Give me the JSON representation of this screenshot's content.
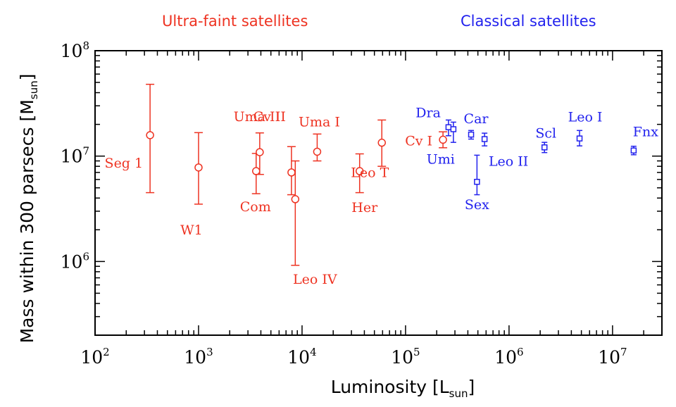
{
  "chart_data": {
    "type": "scatter",
    "xlabel_main": "Luminosity [L",
    "xlabel_sub": "sun",
    "xlabel_end": "]",
    "ylabel_main": "Mass within 300 parsecs [M",
    "ylabel_sub": "sun",
    "ylabel_end": "]",
    "x_scale": "log",
    "y_scale": "log",
    "xlim": [
      100,
      30000000
    ],
    "ylim": [
      200000,
      100000000
    ],
    "x_ticks": [
      {
        "value": 100,
        "base": "10",
        "exp": "2"
      },
      {
        "value": 1000,
        "base": "10",
        "exp": "3"
      },
      {
        "value": 10000,
        "base": "10",
        "exp": "4"
      },
      {
        "value": 100000,
        "base": "10",
        "exp": "5"
      },
      {
        "value": 1000000,
        "base": "10",
        "exp": "6"
      },
      {
        "value": 10000000,
        "base": "10",
        "exp": "7"
      }
    ],
    "y_ticks": [
      {
        "value": 1000000,
        "base": "10",
        "exp": "6"
      },
      {
        "value": 10000000,
        "base": "10",
        "exp": "7"
      },
      {
        "value": 100000000,
        "base": "10",
        "exp": "8"
      }
    ],
    "grid": false,
    "groups": [
      {
        "name": "Ultra-faint satellites",
        "color": "#ee3322",
        "marker": "circle"
      },
      {
        "name": "Classical satellites",
        "color": "#2222ee",
        "marker": "square"
      }
    ],
    "points": [
      {
        "label": "Seg 1",
        "group": 0,
        "x": 340,
        "y": 15800000,
        "ylo": 4500000,
        "yhi": 48000000,
        "lbl_dx": -10,
        "lbl_dy": 46,
        "anchor": "end"
      },
      {
        "label": "W1",
        "group": 0,
        "x": 1000,
        "y": 7800000,
        "ylo": 3500000,
        "yhi": 16700000,
        "lbl_dx": -10,
        "lbl_dy": 95,
        "anchor": "middle"
      },
      {
        "label": "Com",
        "group": 0,
        "x": 3600,
        "y": 7200000,
        "ylo": 4400000,
        "yhi": 10600000,
        "lbl_dx": -1,
        "lbl_dy": 57,
        "anchor": "middle"
      },
      {
        "label": "Uma II",
        "group": 0,
        "x": 3900,
        "y": 10900000,
        "ylo": 6700000,
        "yhi": 16600000,
        "lbl_dx": -4,
        "lbl_dy": -44,
        "anchor": "middle"
      },
      {
        "label": "Cv II",
        "group": 0,
        "x": 7900,
        "y": 7000000,
        "ylo": 4300000,
        "yhi": 12300000,
        "lbl_dx": -8,
        "lbl_dy": -73,
        "anchor": "end"
      },
      {
        "label": "Leo IV",
        "group": 0,
        "x": 8600,
        "y": 3900000,
        "ylo": 920000,
        "yhi": 9000000,
        "lbl_dx": 28,
        "lbl_dy": 120,
        "anchor": "middle"
      },
      {
        "label": "Uma I",
        "group": 0,
        "x": 14000,
        "y": 11000000,
        "ylo": 9000000,
        "yhi": 16200000,
        "lbl_dx": 3,
        "lbl_dy": -36,
        "anchor": "middle"
      },
      {
        "label": "Her",
        "group": 0,
        "x": 36000,
        "y": 7200000,
        "ylo": 4500000,
        "yhi": 10500000,
        "lbl_dx": 7,
        "lbl_dy": 58,
        "anchor": "middle"
      },
      {
        "label": "Leo T",
        "group": 0,
        "x": 59000,
        "y": 13400000,
        "ylo": 8000000,
        "yhi": 22000000,
        "lbl_dx": -17,
        "lbl_dy": 49,
        "anchor": "middle"
      },
      {
        "label": "Cv I",
        "group": 0,
        "x": 230000,
        "y": 14300000,
        "ylo": 12000000,
        "yhi": 17000000,
        "lbl_dx": -15,
        "lbl_dy": 8,
        "anchor": "end"
      },
      {
        "label": "Dra",
        "group": 1,
        "x": 260000,
        "y": 18800000,
        "ylo": 15600000,
        "yhi": 22000000,
        "lbl_dx": -11,
        "lbl_dy": -14,
        "anchor": "end"
      },
      {
        "label": "Umi",
        "group": 1,
        "x": 290000,
        "y": 18000000,
        "ylo": 13500000,
        "yhi": 21000000,
        "lbl_dx": 2,
        "lbl_dy": 49,
        "anchor": "end"
      },
      {
        "label": "Car",
        "group": 1,
        "x": 430000,
        "y": 16000000,
        "ylo": 14500000,
        "yhi": 17500000,
        "lbl_dx": 7,
        "lbl_dy": -16,
        "anchor": "middle"
      },
      {
        "label": "Leo II",
        "group": 1,
        "x": 580000,
        "y": 14500000,
        "ylo": 12500000,
        "yhi": 16500000,
        "lbl_dx": 34,
        "lbl_dy": 38,
        "anchor": "middle"
      },
      {
        "label": "Sex",
        "group": 1,
        "x": 490000,
        "y": 5700000,
        "ylo": 4300000,
        "yhi": 10200000,
        "lbl_dx": 0,
        "lbl_dy": 39,
        "anchor": "middle"
      },
      {
        "label": "Scl",
        "group": 1,
        "x": 2200000,
        "y": 12100000,
        "ylo": 10800000,
        "yhi": 13500000,
        "lbl_dx": 2,
        "lbl_dy": -14,
        "anchor": "middle"
      },
      {
        "label": "Leo I",
        "group": 1,
        "x": 4800000,
        "y": 14700000,
        "ylo": 12500000,
        "yhi": 17500000,
        "lbl_dx": 8,
        "lbl_dy": -24,
        "anchor": "middle"
      },
      {
        "label": "Fnx",
        "group": 1,
        "x": 16000000,
        "y": 11300000,
        "ylo": 10300000,
        "yhi": 12400000,
        "lbl_dx": 17,
        "lbl_dy": -20,
        "anchor": "middle"
      }
    ]
  }
}
